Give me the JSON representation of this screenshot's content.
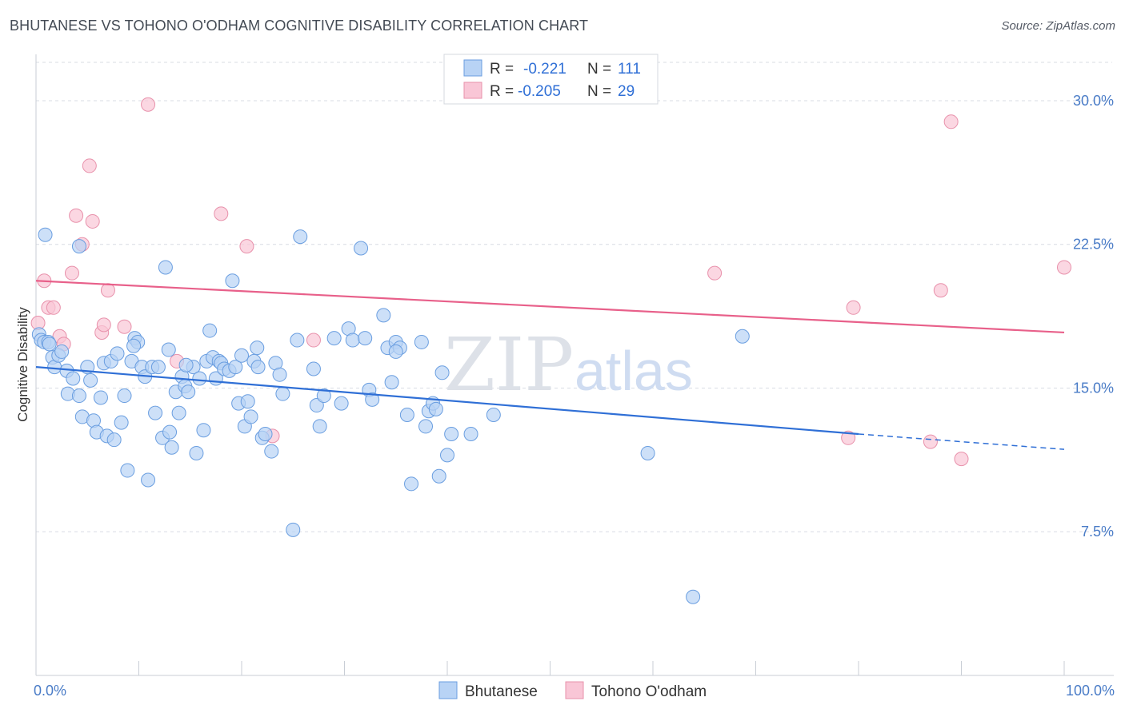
{
  "title": "BHUTANESE VS TOHONO O'ODHAM COGNITIVE DISABILITY CORRELATION CHART",
  "source": "Source: ZipAtlas.com",
  "watermark": {
    "zip": "ZIP",
    "atlas": "atlas"
  },
  "colors": {
    "blue_fill": "#b8d3f5",
    "blue_stroke": "#6a9ee0",
    "blue_line": "#2f6fd6",
    "pink_fill": "#f9c6d6",
    "pink_stroke": "#e891ab",
    "pink_line": "#e8608a",
    "grid": "#d8dce3",
    "axis_label": "#4a7cc7"
  },
  "legend": {
    "r_label": "R =",
    "n_label": "N =",
    "items": [
      {
        "r": "-0.221",
        "n": "111"
      },
      {
        "r": "-0.205",
        "n": "29"
      }
    ]
  },
  "bottom_legend": [
    {
      "label": "Bhutanese"
    },
    {
      "label": "Tohono O'odham"
    }
  ],
  "chart_data": {
    "type": "scatter",
    "title": "BHUTANESE VS TOHONO O'ODHAM COGNITIVE DISABILITY CORRELATION CHART",
    "xlabel": "",
    "ylabel": "Cognitive Disability",
    "xlim": [
      0,
      100
    ],
    "ylim": [
      0,
      32
    ],
    "x_tick_labels": [
      "0.0%",
      "100.0%"
    ],
    "y_ticks": [
      7.5,
      15.0,
      22.5,
      30.0
    ],
    "y_tick_labels": [
      "7.5%",
      "15.0%",
      "22.5%",
      "30.0%"
    ],
    "grid": true,
    "series": [
      {
        "name": "Bhutanese",
        "trend": {
          "x": [
            0,
            80
          ],
          "y": [
            16.1,
            12.6
          ],
          "dashed_to_x": 100,
          "dashed_end_y": 11.8
        },
        "points": [
          [
            0.3,
            17.8
          ],
          [
            0.5,
            17.5
          ],
          [
            0.8,
            17.4
          ],
          [
            1.2,
            17.4
          ],
          [
            1.3,
            17.3
          ],
          [
            1.6,
            16.6
          ],
          [
            1.8,
            16.1
          ],
          [
            2.2,
            16.7
          ],
          [
            2.5,
            16.9
          ],
          [
            3.0,
            15.9
          ],
          [
            3.1,
            14.7
          ],
          [
            3.6,
            15.5
          ],
          [
            4.2,
            14.6
          ],
          [
            4.5,
            13.5
          ],
          [
            5.0,
            16.1
          ],
          [
            5.3,
            15.4
          ],
          [
            5.6,
            13.3
          ],
          [
            5.9,
            12.7
          ],
          [
            6.3,
            14.5
          ],
          [
            6.6,
            16.3
          ],
          [
            6.9,
            12.5
          ],
          [
            7.3,
            16.4
          ],
          [
            7.6,
            12.3
          ],
          [
            7.9,
            16.8
          ],
          [
            8.3,
            13.2
          ],
          [
            8.6,
            14.6
          ],
          [
            8.9,
            10.7
          ],
          [
            9.3,
            16.4
          ],
          [
            9.6,
            17.6
          ],
          [
            9.9,
            17.4
          ],
          [
            10.3,
            16.1
          ],
          [
            10.6,
            15.6
          ],
          [
            10.9,
            10.2
          ],
          [
            11.3,
            16.1
          ],
          [
            11.6,
            13.7
          ],
          [
            11.9,
            16.1
          ],
          [
            12.3,
            12.4
          ],
          [
            12.6,
            21.3
          ],
          [
            12.9,
            17.0
          ],
          [
            13.2,
            11.9
          ],
          [
            13.6,
            14.8
          ],
          [
            13.9,
            13.7
          ],
          [
            14.2,
            15.6
          ],
          [
            14.5,
            15.1
          ],
          [
            14.8,
            14.8
          ],
          [
            15.3,
            16.1
          ],
          [
            15.6,
            11.6
          ],
          [
            15.9,
            15.5
          ],
          [
            16.3,
            12.8
          ],
          [
            16.6,
            16.4
          ],
          [
            16.9,
            18.0
          ],
          [
            17.2,
            16.6
          ],
          [
            17.5,
            15.5
          ],
          [
            17.8,
            16.4
          ],
          [
            18.0,
            16.3
          ],
          [
            18.3,
            16.0
          ],
          [
            18.8,
            15.9
          ],
          [
            19.1,
            20.6
          ],
          [
            19.4,
            16.1
          ],
          [
            19.7,
            14.2
          ],
          [
            20.0,
            16.7
          ],
          [
            20.3,
            13.0
          ],
          [
            20.6,
            14.3
          ],
          [
            20.9,
            13.5
          ],
          [
            21.2,
            16.4
          ],
          [
            21.6,
            16.1
          ],
          [
            22.0,
            12.4
          ],
          [
            22.3,
            12.6
          ],
          [
            22.9,
            11.7
          ],
          [
            23.3,
            16.3
          ],
          [
            23.7,
            15.7
          ],
          [
            24.0,
            14.7
          ],
          [
            25.0,
            7.6
          ],
          [
            25.7,
            22.9
          ],
          [
            25.4,
            17.5
          ],
          [
            27.0,
            16.0
          ],
          [
            27.3,
            14.1
          ],
          [
            27.6,
            13.0
          ],
          [
            28.0,
            14.6
          ],
          [
            29.0,
            17.6
          ],
          [
            29.7,
            14.2
          ],
          [
            30.4,
            18.1
          ],
          [
            30.8,
            17.5
          ],
          [
            31.6,
            22.3
          ],
          [
            32.0,
            17.6
          ],
          [
            32.4,
            14.9
          ],
          [
            32.7,
            14.4
          ],
          [
            33.8,
            18.8
          ],
          [
            34.2,
            17.1
          ],
          [
            34.6,
            15.3
          ],
          [
            35.0,
            17.4
          ],
          [
            35.4,
            17.1
          ],
          [
            36.1,
            13.6
          ],
          [
            36.5,
            10.0
          ],
          [
            37.5,
            17.4
          ],
          [
            37.9,
            13.0
          ],
          [
            38.2,
            13.8
          ],
          [
            38.6,
            14.2
          ],
          [
            38.9,
            13.9
          ],
          [
            39.2,
            10.4
          ],
          [
            39.5,
            15.8
          ],
          [
            40.0,
            11.5
          ],
          [
            40.4,
            12.6
          ],
          [
            42.3,
            12.6
          ],
          [
            44.5,
            13.6
          ],
          [
            59.5,
            11.6
          ],
          [
            63.9,
            4.1
          ],
          [
            68.7,
            17.7
          ],
          [
            0.9,
            23.0
          ],
          [
            4.2,
            22.4
          ],
          [
            14.6,
            16.2
          ],
          [
            35.0,
            16.9
          ],
          [
            9.5,
            17.2
          ],
          [
            21.5,
            17.1
          ],
          [
            13.0,
            12.7
          ]
        ]
      },
      {
        "name": "Tohono O'odham",
        "trend": {
          "x": [
            0,
            100
          ],
          "y": [
            20.6,
            17.9
          ]
        },
        "points": [
          [
            0.2,
            18.4
          ],
          [
            0.8,
            20.6
          ],
          [
            1.2,
            19.2
          ],
          [
            1.7,
            19.2
          ],
          [
            2.3,
            17.7
          ],
          [
            2.7,
            17.3
          ],
          [
            3.5,
            21.0
          ],
          [
            3.9,
            24.0
          ],
          [
            4.5,
            22.5
          ],
          [
            5.2,
            26.6
          ],
          [
            5.5,
            23.7
          ],
          [
            6.4,
            17.9
          ],
          [
            6.6,
            18.3
          ],
          [
            7.0,
            20.1
          ],
          [
            8.6,
            18.2
          ],
          [
            10.9,
            29.8
          ],
          [
            13.7,
            16.4
          ],
          [
            18.0,
            24.1
          ],
          [
            20.5,
            22.4
          ],
          [
            23.0,
            12.5
          ],
          [
            27.0,
            17.5
          ],
          [
            66.0,
            21.0
          ],
          [
            79.0,
            12.4
          ],
          [
            79.5,
            19.2
          ],
          [
            87.0,
            12.2
          ],
          [
            88.0,
            20.1
          ],
          [
            89.0,
            28.9
          ],
          [
            90.0,
            11.3
          ],
          [
            100.0,
            21.3
          ]
        ]
      }
    ]
  }
}
